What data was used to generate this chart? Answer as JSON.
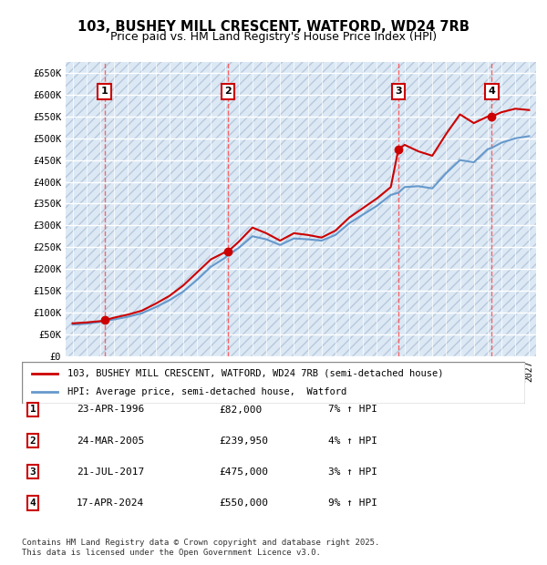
{
  "title_line1": "103, BUSHEY MILL CRESCENT, WATFORD, WD24 7RB",
  "title_line2": "Price paid vs. HM Land Registry's House Price Index (HPI)",
  "ylabel_ticks": [
    "£0",
    "£50K",
    "£100K",
    "£150K",
    "£200K",
    "£250K",
    "£300K",
    "£350K",
    "£400K",
    "£450K",
    "£500K",
    "£550K",
    "£600K",
    "£650K"
  ],
  "ytick_values": [
    0,
    50000,
    100000,
    150000,
    200000,
    250000,
    300000,
    350000,
    400000,
    450000,
    500000,
    550000,
    600000,
    650000
  ],
  "xmin": 1993.5,
  "xmax": 2027.5,
  "ymin": 0,
  "ymax": 675000,
  "background_color": "#dce9f5",
  "plot_bg_color": "#dce9f5",
  "grid_color": "#ffffff",
  "hatch_color": "#c0c8d8",
  "red_line_color": "#cc0000",
  "blue_line_color": "#6699cc",
  "purchase_dates": [
    1996.31,
    2005.23,
    2017.55,
    2024.29
  ],
  "purchase_prices": [
    82000,
    239950,
    475000,
    550000
  ],
  "purchase_labels": [
    "1",
    "2",
    "3",
    "4"
  ],
  "transactions": [
    {
      "label": "1",
      "date": "23-APR-1996",
      "price": "£82,000",
      "hpi": "7% ↑ HPI"
    },
    {
      "label": "2",
      "date": "24-MAR-2005",
      "price": "£239,950",
      "hpi": "4% ↑ HPI"
    },
    {
      "label": "3",
      "date": "21-JUL-2017",
      "price": "£475,000",
      "hpi": "3% ↑ HPI"
    },
    {
      "label": "4",
      "date": "17-APR-2024",
      "price": "£550,000",
      "hpi": "9% ↑ HPI"
    }
  ],
  "legend_line1": "103, BUSHEY MILL CRESCENT, WATFORD, WD24 7RB (semi-detached house)",
  "legend_line2": "HPI: Average price, semi-detached house,  Watford",
  "footer": "Contains HM Land Registry data © Crown copyright and database right 2025.\nThis data is licensed under the Open Government Licence v3.0.",
  "hpi_series_x": [
    1994,
    1995,
    1996,
    1996.31,
    1997,
    1998,
    1999,
    2000,
    2001,
    2002,
    2003,
    2004,
    2005,
    2005.23,
    2006,
    2007,
    2008,
    2009,
    2010,
    2011,
    2012,
    2013,
    2014,
    2015,
    2016,
    2017,
    2017.55,
    2018,
    2019,
    2020,
    2021,
    2022,
    2023,
    2024,
    2024.29,
    2025,
    2026,
    2027
  ],
  "hpi_series_y": [
    72000,
    74000,
    78000,
    80000,
    84000,
    90000,
    98000,
    112000,
    128000,
    148000,
    175000,
    205000,
    225000,
    232000,
    248000,
    275000,
    268000,
    255000,
    270000,
    268000,
    265000,
    278000,
    305000,
    325000,
    345000,
    370000,
    375000,
    388000,
    390000,
    385000,
    420000,
    450000,
    445000,
    475000,
    478000,
    490000,
    500000,
    505000
  ],
  "price_series_x": [
    1994,
    1995,
    1996,
    1996.31,
    1997,
    1998,
    1999,
    2000,
    2001,
    2002,
    2003,
    2004,
    2005,
    2005.23,
    2006,
    2007,
    2008,
    2009,
    2010,
    2011,
    2012,
    2013,
    2014,
    2015,
    2016,
    2017,
    2017.55,
    2018,
    2019,
    2020,
    2021,
    2022,
    2023,
    2024,
    2024.29,
    2025,
    2026,
    2027
  ],
  "price_series_y": [
    75000,
    77000,
    80000,
    82000,
    88000,
    95000,
    104000,
    120000,
    138000,
    162000,
    192000,
    222000,
    238000,
    239950,
    262000,
    295000,
    282000,
    265000,
    282000,
    278000,
    272000,
    288000,
    318000,
    340000,
    362000,
    388000,
    475000,
    485000,
    470000,
    460000,
    510000,
    555000,
    535000,
    550000,
    550000,
    560000,
    568000,
    565000
  ]
}
